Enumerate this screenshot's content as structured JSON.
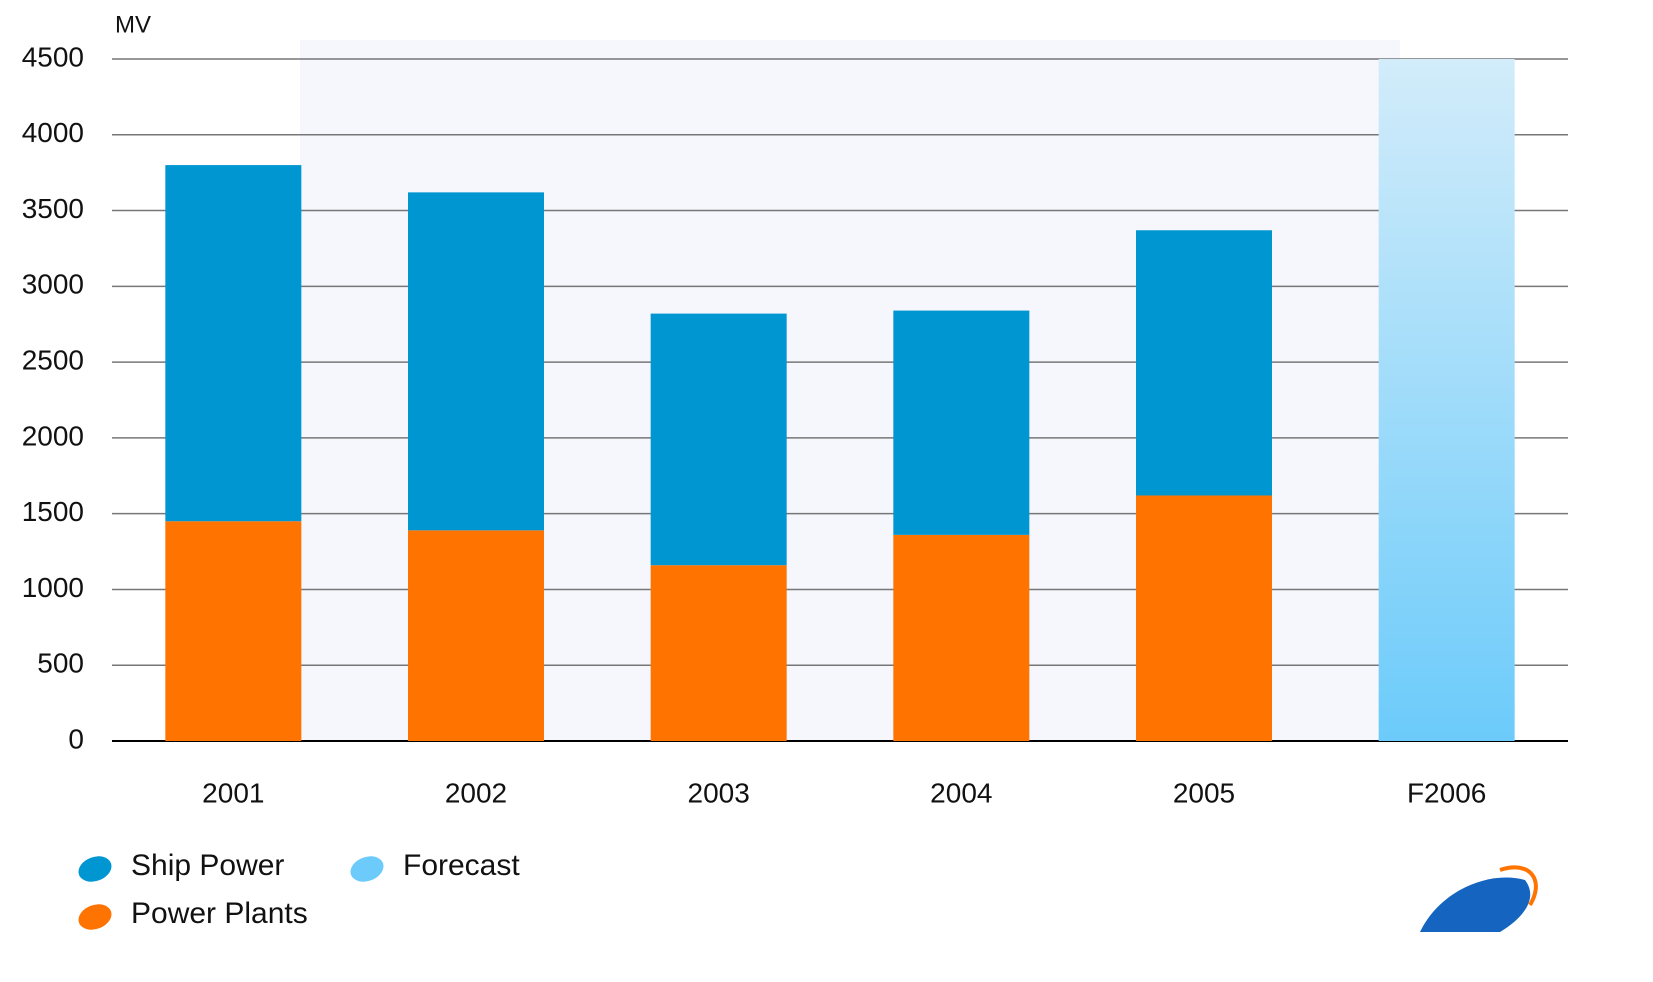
{
  "chart_data": {
    "type": "bar",
    "stacked": true,
    "y_label": "MV",
    "categories": [
      "2001",
      "2002",
      "2003",
      "2004",
      "2005",
      "F2006"
    ],
    "series": [
      {
        "name": "Power Plants",
        "color": "#ff7300",
        "values": [
          1450,
          1390,
          1160,
          1360,
          1620,
          null
        ]
      },
      {
        "name": "Ship Power",
        "color": "#0096d2",
        "values": [
          2350,
          2230,
          1660,
          1480,
          1750,
          null
        ]
      },
      {
        "name": "Forecast",
        "color": "#6ccbfa",
        "values": [
          null,
          null,
          null,
          null,
          null,
          4500
        ]
      }
    ],
    "ylim": [
      0,
      4500
    ],
    "yticks": [
      0,
      500,
      1000,
      1500,
      2000,
      2500,
      3000,
      3500,
      4000,
      4500
    ],
    "grid": true
  }
}
